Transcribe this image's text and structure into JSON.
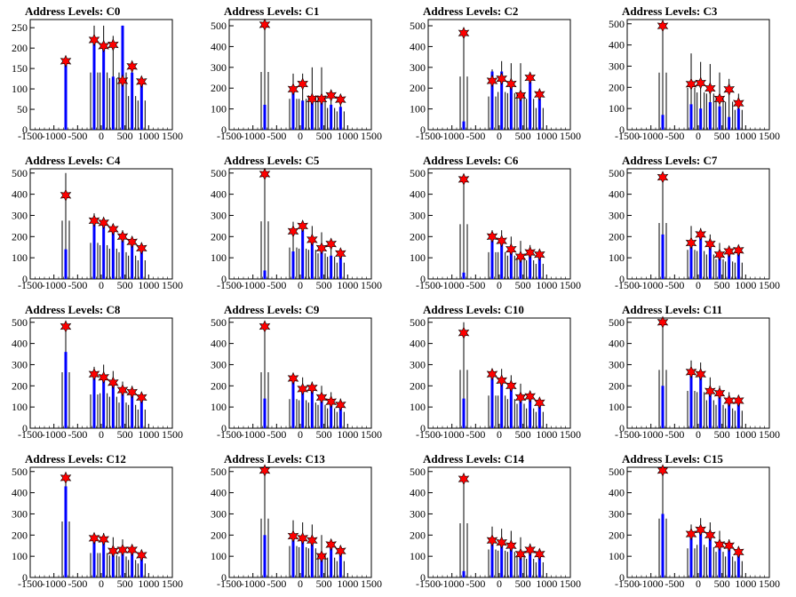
{
  "chart_data": [
    {
      "type": "bar",
      "title": "Address Levels: C0",
      "xlim": [
        -1500,
        1500
      ],
      "ylim": [
        0,
        270
      ],
      "yticks": [
        0,
        50,
        100,
        150,
        200,
        250
      ],
      "xticks": [
        -1500,
        -1000,
        -500,
        0,
        500,
        1000,
        1500
      ],
      "xtick_labels": [
        "-1500",
        "-1000",
        "-500",
        "0",
        "500",
        "1000",
        "1500"
      ],
      "peaks": [
        {
          "x": -750,
          "y": 168
        },
        {
          "x": -150,
          "y": 220
        },
        {
          "x": 50,
          "y": 205
        },
        {
          "x": 250,
          "y": 208
        },
        {
          "x": 450,
          "y": 120
        },
        {
          "x": 650,
          "y": 155
        },
        {
          "x": 850,
          "y": 118
        }
      ],
      "black_max": [
        0,
        255,
        255,
        230,
        255,
        150,
        130
      ],
      "blue_max": [
        170,
        220,
        210,
        130,
        255,
        140,
        120
      ]
    },
    {
      "type": "bar",
      "title": "Address Levels: C1",
      "xlim": [
        -1500,
        1500
      ],
      "ylim": [
        0,
        530
      ],
      "yticks": [
        0,
        100,
        200,
        300,
        400,
        500
      ],
      "xticks": [
        -1500,
        -1000,
        -500,
        0,
        500,
        1000,
        1500
      ],
      "xtick_labels": [
        "-1500",
        "-1000",
        "-500",
        "0",
        "500",
        "1000",
        "1500"
      ],
      "peaks": [
        {
          "x": -750,
          "y": 505
        },
        {
          "x": -150,
          "y": 195
        },
        {
          "x": 50,
          "y": 220
        },
        {
          "x": 250,
          "y": 148
        },
        {
          "x": 450,
          "y": 148
        },
        {
          "x": 650,
          "y": 165
        },
        {
          "x": 850,
          "y": 145
        }
      ],
      "black_max": [
        505,
        270,
        270,
        300,
        300,
        190,
        160
      ],
      "blue_max": [
        120,
        195,
        140,
        150,
        145,
        120,
        110
      ]
    },
    {
      "type": "bar",
      "title": "Address Levels: C2",
      "xlim": [
        -1500,
        1500
      ],
      "ylim": [
        0,
        530
      ],
      "yticks": [
        0,
        100,
        200,
        300,
        400,
        500
      ],
      "xticks": [
        -1500,
        -1000,
        -500,
        0,
        500,
        1000,
        1500
      ],
      "xtick_labels": [
        "-1500",
        "-1000",
        "-500",
        "0",
        "500",
        "1000",
        "1500"
      ],
      "peaks": [
        {
          "x": -750,
          "y": 465
        },
        {
          "x": -150,
          "y": 235
        },
        {
          "x": 50,
          "y": 245
        },
        {
          "x": 250,
          "y": 220
        },
        {
          "x": 450,
          "y": 165
        },
        {
          "x": 650,
          "y": 250
        },
        {
          "x": 850,
          "y": 170
        }
      ],
      "black_max": [
        465,
        290,
        330,
        320,
        320,
        270,
        190
      ],
      "blue_max": [
        40,
        280,
        280,
        210,
        170,
        230,
        150
      ]
    },
    {
      "type": "bar",
      "title": "Address Levels: C3",
      "xlim": [
        -1500,
        1500
      ],
      "ylim": [
        0,
        520
      ],
      "yticks": [
        0,
        100,
        200,
        300,
        400,
        500
      ],
      "xticks": [
        -1500,
        -1000,
        -500,
        0,
        500,
        1000,
        1500
      ],
      "xtick_labels": [
        "-1500",
        "-1000",
        "-500",
        "0",
        "500",
        "1000",
        "1500"
      ],
      "peaks": [
        {
          "x": -750,
          "y": 490
        },
        {
          "x": -150,
          "y": 215
        },
        {
          "x": 50,
          "y": 220
        },
        {
          "x": 250,
          "y": 195
        },
        {
          "x": 450,
          "y": 145
        },
        {
          "x": 650,
          "y": 190
        },
        {
          "x": 850,
          "y": 125
        }
      ],
      "black_max": [
        490,
        360,
        320,
        310,
        270,
        240,
        170
      ],
      "blue_max": [
        70,
        120,
        100,
        130,
        110,
        60,
        100
      ]
    },
    {
      "type": "bar",
      "title": "Address Levels: C4",
      "xlim": [
        -1500,
        1500
      ],
      "ylim": [
        0,
        520
      ],
      "yticks": [
        0,
        100,
        200,
        300,
        400,
        500
      ],
      "xticks": [
        -1500,
        -1000,
        -500,
        0,
        500,
        1000,
        1500
      ],
      "xtick_labels": [
        "-1500",
        "-1000",
        "-500",
        "0",
        "500",
        "1000",
        "1500"
      ],
      "peaks": [
        {
          "x": -750,
          "y": 395
        },
        {
          "x": -150,
          "y": 275
        },
        {
          "x": 50,
          "y": 265
        },
        {
          "x": 250,
          "y": 235
        },
        {
          "x": 450,
          "y": 200
        },
        {
          "x": 650,
          "y": 175
        },
        {
          "x": 850,
          "y": 145
        }
      ],
      "black_max": [
        500,
        310,
        290,
        260,
        230,
        200,
        160
      ],
      "blue_max": [
        140,
        260,
        250,
        220,
        190,
        160,
        130
      ]
    },
    {
      "type": "bar",
      "title": "Address Levels: C5",
      "xlim": [
        -1500,
        1500
      ],
      "ylim": [
        0,
        520
      ],
      "yticks": [
        0,
        100,
        200,
        300,
        400,
        500
      ],
      "xticks": [
        -1500,
        -1000,
        -500,
        0,
        500,
        1000,
        1500
      ],
      "xtick_labels": [
        "-1500",
        "-1000",
        "-500",
        "0",
        "500",
        "1000",
        "1500"
      ],
      "peaks": [
        {
          "x": -750,
          "y": 495
        },
        {
          "x": -150,
          "y": 225
        },
        {
          "x": 50,
          "y": 250
        },
        {
          "x": 250,
          "y": 185
        },
        {
          "x": 450,
          "y": 145
        },
        {
          "x": 650,
          "y": 165
        },
        {
          "x": 850,
          "y": 120
        }
      ],
      "black_max": [
        495,
        270,
        260,
        250,
        220,
        190,
        140
      ],
      "blue_max": [
        40,
        130,
        230,
        180,
        140,
        110,
        110
      ]
    },
    {
      "type": "bar",
      "title": "Address Levels: C6",
      "xlim": [
        -1500,
        1500
      ],
      "ylim": [
        0,
        520
      ],
      "yticks": [
        0,
        100,
        200,
        300,
        400,
        500
      ],
      "xticks": [
        -1500,
        -1000,
        -500,
        0,
        500,
        1000,
        1500
      ],
      "xtick_labels": [
        "-1500",
        "-1000",
        "-500",
        "0",
        "500",
        "1000",
        "1500"
      ],
      "peaks": [
        {
          "x": -750,
          "y": 470
        },
        {
          "x": -150,
          "y": 200
        },
        {
          "x": 50,
          "y": 180
        },
        {
          "x": 250,
          "y": 140
        },
        {
          "x": 450,
          "y": 105
        },
        {
          "x": 650,
          "y": 125
        },
        {
          "x": 850,
          "y": 115
        }
      ],
      "black_max": [
        470,
        230,
        230,
        200,
        180,
        160,
        130
      ],
      "blue_max": [
        30,
        190,
        170,
        130,
        100,
        120,
        110
      ]
    },
    {
      "type": "bar",
      "title": "Address Levels: C7",
      "xlim": [
        -1500,
        1500
      ],
      "ylim": [
        0,
        520
      ],
      "yticks": [
        0,
        100,
        200,
        300,
        400,
        500
      ],
      "xticks": [
        -1500,
        -1000,
        -500,
        0,
        500,
        1000,
        1500
      ],
      "xtick_labels": [
        "-1500",
        "-1000",
        "-500",
        "0",
        "500",
        "1000",
        "1500"
      ],
      "peaks": [
        {
          "x": -750,
          "y": 480
        },
        {
          "x": -150,
          "y": 170
        },
        {
          "x": 50,
          "y": 210
        },
        {
          "x": 250,
          "y": 165
        },
        {
          "x": 450,
          "y": 115
        },
        {
          "x": 650,
          "y": 130
        },
        {
          "x": 850,
          "y": 135
        }
      ],
      "black_max": [
        480,
        250,
        240,
        210,
        170,
        150,
        140
      ],
      "blue_max": [
        210,
        160,
        200,
        160,
        110,
        120,
        130
      ]
    },
    {
      "type": "bar",
      "title": "Address Levels: C8",
      "xlim": [
        -1500,
        1500
      ],
      "ylim": [
        0,
        520
      ],
      "yticks": [
        0,
        100,
        200,
        300,
        400,
        500
      ],
      "xticks": [
        -1500,
        -1000,
        -500,
        0,
        500,
        1000,
        1500
      ],
      "xtick_labels": [
        "-1500",
        "-1000",
        "-500",
        "0",
        "500",
        "1000",
        "1500"
      ],
      "peaks": [
        {
          "x": -750,
          "y": 480
        },
        {
          "x": -150,
          "y": 255
        },
        {
          "x": 50,
          "y": 240
        },
        {
          "x": 250,
          "y": 215
        },
        {
          "x": 450,
          "y": 180
        },
        {
          "x": 650,
          "y": 170
        },
        {
          "x": 850,
          "y": 145
        }
      ],
      "black_max": [
        480,
        290,
        300,
        270,
        220,
        200,
        160
      ],
      "blue_max": [
        360,
        250,
        230,
        200,
        170,
        160,
        140
      ]
    },
    {
      "type": "bar",
      "title": "Address Levels: C9",
      "xlim": [
        -1500,
        1500
      ],
      "ylim": [
        0,
        520
      ],
      "yticks": [
        0,
        100,
        200,
        300,
        400,
        500
      ],
      "xticks": [
        -1500,
        -1000,
        -500,
        0,
        500,
        1000,
        1500
      ],
      "xtick_labels": [
        "-1500",
        "-1000",
        "-500",
        "0",
        "500",
        "1000",
        "1500"
      ],
      "peaks": [
        {
          "x": -750,
          "y": 480
        },
        {
          "x": -150,
          "y": 235
        },
        {
          "x": 50,
          "y": 185
        },
        {
          "x": 250,
          "y": 190
        },
        {
          "x": 450,
          "y": 145
        },
        {
          "x": 650,
          "y": 125
        },
        {
          "x": 850,
          "y": 110
        }
      ],
      "black_max": [
        480,
        250,
        240,
        220,
        200,
        170,
        140
      ],
      "blue_max": [
        140,
        230,
        180,
        180,
        140,
        120,
        100
      ]
    },
    {
      "type": "bar",
      "title": "Address Levels: C10",
      "xlim": [
        -1500,
        1500
      ],
      "ylim": [
        0,
        520
      ],
      "yticks": [
        0,
        100,
        200,
        300,
        400,
        500
      ],
      "xticks": [
        -1500,
        -1000,
        -500,
        0,
        500,
        1000,
        1500
      ],
      "xtick_labels": [
        "-1500",
        "-1000",
        "-500",
        "0",
        "500",
        "1000",
        "1500"
      ],
      "peaks": [
        {
          "x": -750,
          "y": 450
        },
        {
          "x": -150,
          "y": 255
        },
        {
          "x": 50,
          "y": 225
        },
        {
          "x": 250,
          "y": 200
        },
        {
          "x": 450,
          "y": 145
        },
        {
          "x": 650,
          "y": 150
        },
        {
          "x": 850,
          "y": 120
        }
      ],
      "black_max": [
        500,
        280,
        280,
        250,
        210,
        170,
        140
      ],
      "blue_max": [
        140,
        240,
        220,
        190,
        140,
        140,
        110
      ]
    },
    {
      "type": "bar",
      "title": "Address Levels: C11",
      "xlim": [
        -1500,
        1500
      ],
      "ylim": [
        0,
        520
      ],
      "yticks": [
        0,
        100,
        200,
        300,
        400,
        500
      ],
      "xticks": [
        -1500,
        -1000,
        -500,
        0,
        500,
        1000,
        1500
      ],
      "xtick_labels": [
        "-1500",
        "-1000",
        "-500",
        "0",
        "500",
        "1000",
        "1500"
      ],
      "peaks": [
        {
          "x": -750,
          "y": 500
        },
        {
          "x": -150,
          "y": 265
        },
        {
          "x": 50,
          "y": 255
        },
        {
          "x": 250,
          "y": 175
        },
        {
          "x": 450,
          "y": 165
        },
        {
          "x": 650,
          "y": 130
        },
        {
          "x": 850,
          "y": 130
        }
      ],
      "black_max": [
        500,
        320,
        310,
        240,
        200,
        170,
        150
      ],
      "blue_max": [
        200,
        250,
        240,
        170,
        160,
        130,
        120
      ]
    },
    {
      "type": "bar",
      "title": "Address Levels: C12",
      "xlim": [
        -1500,
        1500
      ],
      "ylim": [
        0,
        520
      ],
      "yticks": [
        0,
        100,
        200,
        300,
        400,
        500
      ],
      "xticks": [
        -1500,
        -1000,
        -500,
        0,
        500,
        1000,
        1500
      ],
      "xtick_labels": [
        "-1500",
        "-1000",
        "-500",
        "0",
        "500",
        "1000",
        "1500"
      ],
      "peaks": [
        {
          "x": -750,
          "y": 470
        },
        {
          "x": -150,
          "y": 185
        },
        {
          "x": 50,
          "y": 180
        },
        {
          "x": 250,
          "y": 125
        },
        {
          "x": 450,
          "y": 130
        },
        {
          "x": 650,
          "y": 130
        },
        {
          "x": 850,
          "y": 105
        }
      ],
      "black_max": [
        480,
        210,
        210,
        190,
        180,
        150,
        120
      ],
      "blue_max": [
        430,
        180,
        170,
        120,
        120,
        120,
        100
      ]
    },
    {
      "type": "bar",
      "title": "Address Levels: C13",
      "xlim": [
        -1500,
        1500
      ],
      "ylim": [
        0,
        520
      ],
      "yticks": [
        0,
        100,
        200,
        300,
        400,
        500
      ],
      "xticks": [
        -1500,
        -1000,
        -500,
        0,
        500,
        1000,
        1500
      ],
      "xtick_labels": [
        "-1500",
        "-1000",
        "-500",
        "0",
        "500",
        "1000",
        "1500"
      ],
      "peaks": [
        {
          "x": -750,
          "y": 505
        },
        {
          "x": -150,
          "y": 195
        },
        {
          "x": 50,
          "y": 185
        },
        {
          "x": 250,
          "y": 175
        },
        {
          "x": 450,
          "y": 100
        },
        {
          "x": 650,
          "y": 155
        },
        {
          "x": 850,
          "y": 125
        }
      ],
      "black_max": [
        505,
        270,
        260,
        250,
        200,
        170,
        140
      ],
      "blue_max": [
        200,
        190,
        180,
        170,
        100,
        150,
        120
      ]
    },
    {
      "type": "bar",
      "title": "Address Levels: C14",
      "xlim": [
        -1500,
        1500
      ],
      "ylim": [
        0,
        520
      ],
      "yticks": [
        0,
        100,
        200,
        300,
        400,
        500
      ],
      "xticks": [
        -1500,
        -1000,
        -500,
        0,
        500,
        1000,
        1500
      ],
      "xtick_labels": [
        "-1500",
        "-1000",
        "-500",
        "0",
        "500",
        "1000",
        "1500"
      ],
      "peaks": [
        {
          "x": -750,
          "y": 465
        },
        {
          "x": -150,
          "y": 175
        },
        {
          "x": 50,
          "y": 165
        },
        {
          "x": 250,
          "y": 150
        },
        {
          "x": 450,
          "y": 110
        },
        {
          "x": 650,
          "y": 130
        },
        {
          "x": 850,
          "y": 110
        }
      ],
      "black_max": [
        465,
        240,
        230,
        220,
        190,
        160,
        130
      ],
      "blue_max": [
        30,
        170,
        160,
        140,
        100,
        120,
        100
      ]
    },
    {
      "type": "bar",
      "title": "Address Levels: C15",
      "xlim": [
        -1500,
        1500
      ],
      "ylim": [
        0,
        520
      ],
      "yticks": [
        0,
        100,
        200,
        300,
        400,
        500
      ],
      "xticks": [
        -1500,
        -1000,
        -500,
        0,
        500,
        1000,
        1500
      ],
      "xtick_labels": [
        "-1500",
        "-1000",
        "-500",
        "0",
        "500",
        "1000",
        "1500"
      ],
      "peaks": [
        {
          "x": -750,
          "y": 505
        },
        {
          "x": -150,
          "y": 205
        },
        {
          "x": 50,
          "y": 225
        },
        {
          "x": 250,
          "y": 200
        },
        {
          "x": 450,
          "y": 155
        },
        {
          "x": 650,
          "y": 150
        },
        {
          "x": 850,
          "y": 120
        }
      ],
      "black_max": [
        505,
        250,
        280,
        260,
        220,
        180,
        140
      ],
      "blue_max": [
        300,
        200,
        220,
        190,
        150,
        140,
        110
      ]
    }
  ],
  "colors": {
    "bar_black": "#000000",
    "bar_blue": "#0000ff",
    "marker": "#ff0000",
    "axis": "#000000",
    "background": "#ffffff"
  }
}
